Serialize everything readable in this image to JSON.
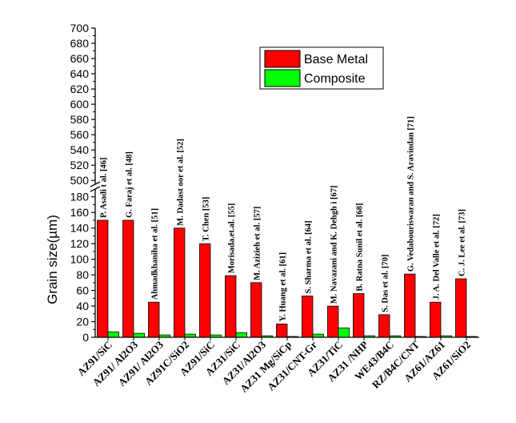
{
  "chart_data": {
    "type": "bar",
    "ylabel": "Grain size(µm)",
    "y_segments": [
      {
        "range": [
          0,
          190
        ],
        "ticks": [
          0,
          20,
          40,
          60,
          80,
          100,
          120,
          140,
          160,
          180
        ]
      },
      {
        "range": [
          495,
          700
        ],
        "ticks": [
          500,
          520,
          540,
          560,
          580,
          600,
          620,
          640,
          660,
          680,
          700
        ]
      }
    ],
    "axis_break": true,
    "categories": [
      "AZ91/SiC",
      "AZ91/ Al2O3",
      "AZ91/ Al2O3",
      "AZ91C/SiO2",
      "AZ91/SiC",
      "AZ31/SiC",
      "AZ31/Al2O3",
      "AZ31 Mg/SiCp",
      "AZ31/CNT-Gr",
      "AZ31/TiC",
      "AZ31 /NHP",
      "WE43/B4C",
      "RZ/B4C/CNT",
      "AZ61/AZ61",
      "AZ61/SiO2"
    ],
    "references": [
      "P. Asadi  t al. [46]",
      "G. Faraj  et al. [48]",
      "Ahmadkhaniha et al. [51]",
      "M. Dadast  oor et al. [52]",
      "T. Chen [53]",
      "Morisada.et.al. [55]",
      "M. Azizieh et al. [57]",
      "Y. Huang et al. [61]",
      "S. Sharma et al. [64]",
      "M. Navazani and K. Dehgh  i [67]",
      "B. Ratna Sunil et al. [68]",
      "S. Das et al. [70]",
      "G. Vedabouriswaran and S. Aravindan [71]",
      "J. A. Del Valle et al. [72]",
      "C. J. Lee et al. [73]"
    ],
    "series": [
      {
        "name": "Base Metal",
        "color": "#ff0000",
        "values": [
          150,
          150,
          45,
          140,
          120,
          79,
          70,
          17,
          53,
          40,
          56,
          29,
          81,
          45,
          75
        ]
      },
      {
        "name": "Composite",
        "color": "#00ff00",
        "values": [
          7,
          5,
          3,
          4,
          3,
          6,
          2,
          1,
          4,
          12,
          2,
          2,
          1,
          2,
          1
        ]
      }
    ],
    "legend_position": "top-right",
    "grid": false
  }
}
